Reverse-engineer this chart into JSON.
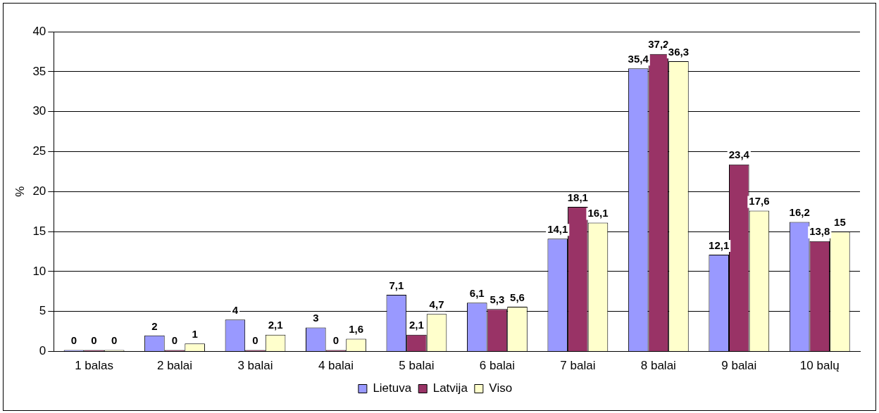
{
  "chart_data": {
    "type": "bar",
    "ylabel": "%",
    "categories": [
      "1 balas",
      "2 balai",
      "3 balai",
      "4 balai",
      "5 balai",
      "6 balai",
      "7 balai",
      "8 balai",
      "9 balai",
      "10 balų"
    ],
    "series": [
      {
        "name": "Lietuva",
        "color": "#9999ff",
        "values": [
          0,
          2,
          4,
          3,
          7.1,
          6.1,
          14.1,
          35.4,
          12.1,
          16.2
        ],
        "value_labels": [
          "0",
          "2",
          "4",
          "3",
          "7,1",
          "6,1",
          "14,1",
          "35,4",
          "12,1",
          "16,2"
        ]
      },
      {
        "name": "Latvija",
        "color": "#993366",
        "values": [
          0,
          0,
          0,
          0,
          2.1,
          5.3,
          18.1,
          37.2,
          23.4,
          13.8
        ],
        "value_labels": [
          "0",
          "0",
          "0",
          "0",
          "2,1",
          "5,3",
          "18,1",
          "37,2",
          "23,4",
          "13,8"
        ]
      },
      {
        "name": "Viso",
        "color": "#ffffcc",
        "values": [
          0,
          1,
          2.1,
          1.6,
          4.7,
          5.6,
          16.1,
          36.3,
          17.6,
          15
        ],
        "value_labels": [
          "0",
          "1",
          "2,1",
          "1,6",
          "4,7",
          "5,6",
          "16,1",
          "36,3",
          "17,6",
          "15"
        ]
      }
    ],
    "ylim": [
      0,
      40
    ],
    "yticks": [
      0,
      5,
      10,
      15,
      20,
      25,
      30,
      35,
      40
    ],
    "grid": "y",
    "legend": "bottom"
  }
}
